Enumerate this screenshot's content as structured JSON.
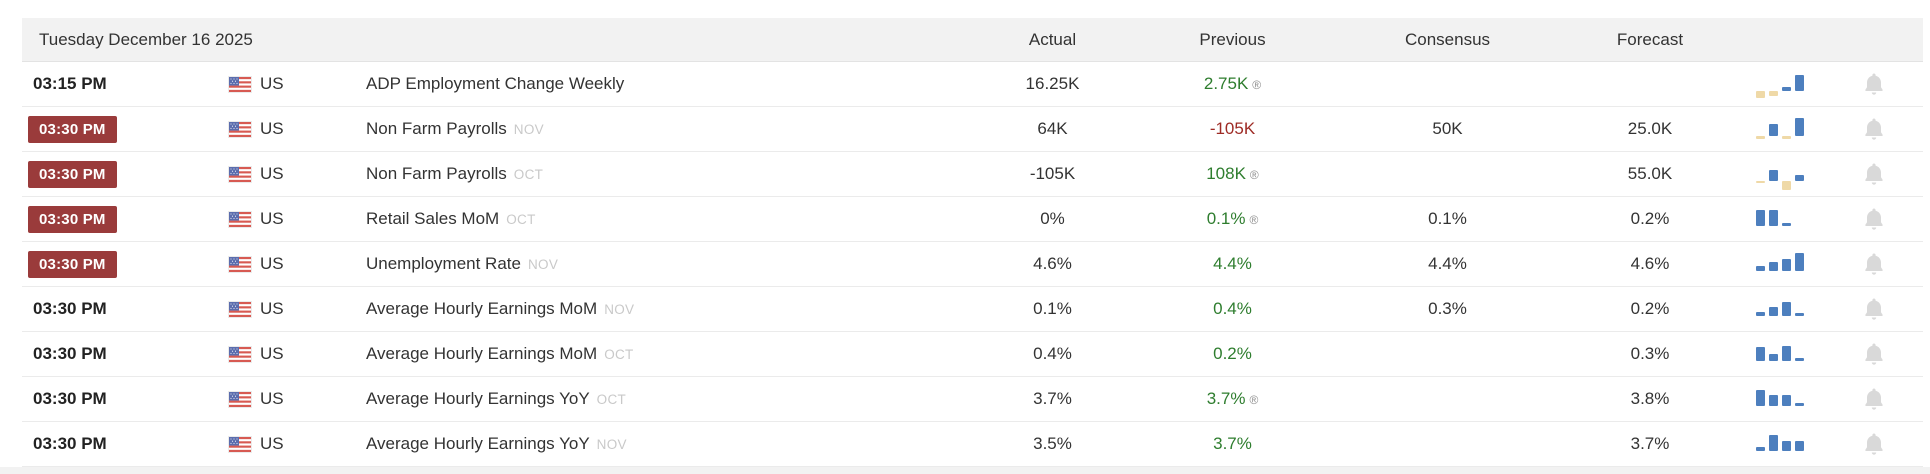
{
  "header": {
    "date": "Tuesday December 16 2025",
    "columns": {
      "actual": "Actual",
      "previous": "Previous",
      "consensus": "Consensus",
      "forecast": "Forecast"
    }
  },
  "colors": {
    "badge_bg": "#9a3b3b",
    "positive_green": "#2e7d2e",
    "negative_red": "#9e2b25",
    "spark_blue": "#4d7fbe",
    "spark_tan": "#efd9a7",
    "band_bg": "#f2f2f2",
    "period_gray": "#c9c9c9",
    "bell_gray": "#d9d9d9"
  },
  "rows": [
    {
      "time": "03:15 PM",
      "important": false,
      "country": "US",
      "event": "ADP Employment Change Weekly",
      "period": "",
      "actual": "16.25K",
      "previous": "2.75K",
      "previous_color": "green",
      "previous_revised": true,
      "consensus": "",
      "forecast": "",
      "bell": true,
      "spark": [
        {
          "h": 7,
          "neg": true,
          "c": "tan"
        },
        {
          "h": 5,
          "neg": true,
          "c": "tan"
        },
        {
          "h": 4,
          "neg": false,
          "c": "blue"
        },
        {
          "h": 16,
          "neg": false,
          "c": "blue"
        }
      ]
    },
    {
      "time": "03:30 PM",
      "important": true,
      "country": "US",
      "event": "Non Farm Payrolls",
      "period": "NOV",
      "actual": "64K",
      "previous": "-105K",
      "previous_color": "red",
      "previous_revised": false,
      "consensus": "50K",
      "forecast": "25.0K",
      "bell": true,
      "spark": [
        {
          "h": 3,
          "neg": true,
          "c": "tan"
        },
        {
          "h": 12,
          "neg": false,
          "c": "blue"
        },
        {
          "h": 3,
          "neg": true,
          "c": "tan"
        },
        {
          "h": 18,
          "neg": false,
          "c": "blue"
        }
      ]
    },
    {
      "time": "03:30 PM",
      "important": true,
      "country": "US",
      "event": "Non Farm Payrolls",
      "period": "OCT",
      "actual": "-105K",
      "previous": "108K",
      "previous_color": "green",
      "previous_revised": true,
      "consensus": "",
      "forecast": "55.0K",
      "bell": true,
      "spark": [
        {
          "h": 2,
          "neg": true,
          "c": "tan"
        },
        {
          "h": 11,
          "neg": false,
          "c": "blue"
        },
        {
          "h": 9,
          "neg": true,
          "c": "tan"
        },
        {
          "h": 6,
          "neg": false,
          "c": "blue"
        }
      ]
    },
    {
      "time": "03:30 PM",
      "important": true,
      "country": "US",
      "event": "Retail Sales MoM",
      "period": "OCT",
      "actual": "0%",
      "previous": "0.1%",
      "previous_color": "green",
      "previous_revised": true,
      "consensus": "0.1%",
      "forecast": "0.2%",
      "bell": true,
      "spark": [
        {
          "h": 16,
          "neg": false,
          "c": "blue"
        },
        {
          "h": 16,
          "neg": false,
          "c": "blue"
        },
        {
          "h": 3,
          "neg": false,
          "c": "blue"
        }
      ]
    },
    {
      "time": "03:30 PM",
      "important": true,
      "country": "US",
      "event": "Unemployment Rate",
      "period": "NOV",
      "actual": "4.6%",
      "previous": "4.4%",
      "previous_color": "green",
      "previous_revised": false,
      "consensus": "4.4%",
      "forecast": "4.6%",
      "bell": true,
      "spark": [
        {
          "h": 5,
          "neg": false,
          "c": "blue"
        },
        {
          "h": 9,
          "neg": false,
          "c": "blue"
        },
        {
          "h": 12,
          "neg": false,
          "c": "blue"
        },
        {
          "h": 18,
          "neg": false,
          "c": "blue"
        }
      ]
    },
    {
      "time": "03:30 PM",
      "important": false,
      "country": "US",
      "event": "Average Hourly Earnings MoM",
      "period": "NOV",
      "actual": "0.1%",
      "previous": "0.4%",
      "previous_color": "green",
      "previous_revised": false,
      "consensus": "0.3%",
      "forecast": "0.2%",
      "bell": true,
      "spark": [
        {
          "h": 4,
          "neg": false,
          "c": "blue"
        },
        {
          "h": 9,
          "neg": false,
          "c": "blue"
        },
        {
          "h": 14,
          "neg": false,
          "c": "blue"
        },
        {
          "h": 3,
          "neg": false,
          "c": "blue"
        }
      ]
    },
    {
      "time": "03:30 PM",
      "important": false,
      "country": "US",
      "event": "Average Hourly Earnings MoM",
      "period": "OCT",
      "actual": "0.4%",
      "previous": "0.2%",
      "previous_color": "green",
      "previous_revised": false,
      "consensus": "",
      "forecast": "0.3%",
      "bell": true,
      "spark": [
        {
          "h": 14,
          "neg": false,
          "c": "blue"
        },
        {
          "h": 7,
          "neg": false,
          "c": "blue"
        },
        {
          "h": 15,
          "neg": false,
          "c": "blue"
        },
        {
          "h": 3,
          "neg": false,
          "c": "blue"
        }
      ]
    },
    {
      "time": "03:30 PM",
      "important": false,
      "country": "US",
      "event": "Average Hourly Earnings YoY",
      "period": "OCT",
      "actual": "3.7%",
      "previous": "3.7%",
      "previous_color": "green",
      "previous_revised": true,
      "consensus": "",
      "forecast": "3.8%",
      "bell": true,
      "spark": [
        {
          "h": 16,
          "neg": false,
          "c": "blue"
        },
        {
          "h": 11,
          "neg": false,
          "c": "blue"
        },
        {
          "h": 11,
          "neg": false,
          "c": "blue"
        },
        {
          "h": 3,
          "neg": false,
          "c": "blue"
        }
      ]
    },
    {
      "time": "03:30 PM",
      "important": false,
      "country": "US",
      "event": "Average Hourly Earnings YoY",
      "period": "NOV",
      "actual": "3.5%",
      "previous": "3.7%",
      "previous_color": "green",
      "previous_revised": false,
      "consensus": "",
      "forecast": "3.7%",
      "bell": true,
      "spark": [
        {
          "h": 4,
          "neg": false,
          "c": "blue"
        },
        {
          "h": 16,
          "neg": false,
          "c": "blue"
        },
        {
          "h": 10,
          "neg": false,
          "c": "blue"
        },
        {
          "h": 10,
          "neg": false,
          "c": "blue"
        }
      ]
    }
  ],
  "revised_symbol": "®"
}
